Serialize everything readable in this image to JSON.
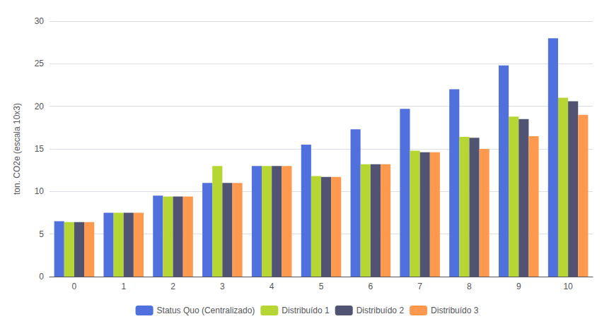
{
  "chart_data": {
    "type": "bar",
    "categories": [
      0,
      1,
      2,
      3,
      4,
      5,
      6,
      7,
      8,
      9,
      10
    ],
    "series": [
      {
        "name": "Status Quo (Centralizado)",
        "values": [
          6.5,
          7.5,
          9.5,
          11.0,
          13.0,
          15.5,
          17.3,
          19.7,
          22.0,
          24.8,
          28.0
        ]
      },
      {
        "name": "Distribuído 1",
        "values": [
          6.4,
          7.5,
          9.4,
          13.0,
          13.0,
          11.8,
          13.2,
          14.8,
          16.4,
          18.8,
          21.0
        ]
      },
      {
        "name": "Distribuído 2",
        "values": [
          6.4,
          7.5,
          9.4,
          11.0,
          13.0,
          11.7,
          13.2,
          14.6,
          16.3,
          18.5,
          20.6
        ]
      },
      {
        "name": "Distribuído 3",
        "values": [
          6.4,
          7.5,
          9.4,
          11.0,
          13.0,
          11.7,
          13.2,
          14.6,
          15.0,
          16.5,
          19.0
        ]
      }
    ],
    "ylabel": "ton. CO2e (escala 10x3)",
    "ylim": [
      0,
      30
    ],
    "yticks": [
      0,
      5,
      10,
      15,
      20,
      25,
      30
    ],
    "grid": true,
    "legend": "bottom"
  }
}
